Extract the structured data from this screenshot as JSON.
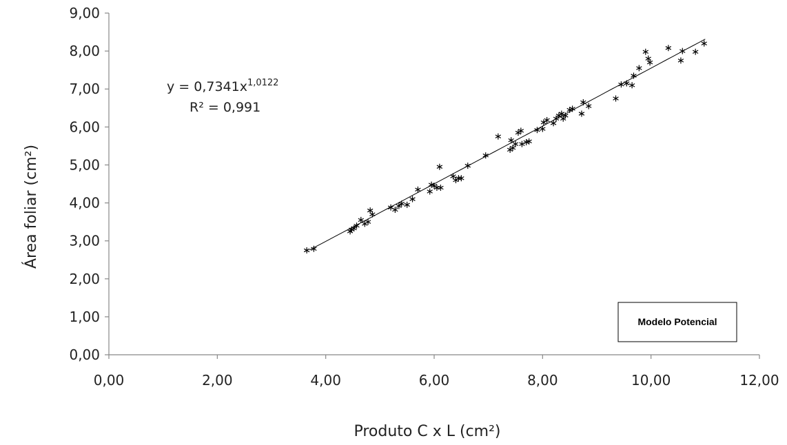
{
  "chart_data": {
    "type": "scatter",
    "xlabel": "Produto C x L  (cm²)",
    "ylabel": "Área foliar  (cm²)",
    "xlim": [
      0,
      12
    ],
    "ylim": [
      0,
      9
    ],
    "x_ticks": [
      "0,00",
      "2,00",
      "4,00",
      "6,00",
      "8,00",
      "10,00",
      "12,00"
    ],
    "y_ticks": [
      "0,00",
      "1,00",
      "2,00",
      "3,00",
      "4,00",
      "5,00",
      "6,00",
      "7,00",
      "8,00",
      "9,00"
    ],
    "equation": "y = 0,7341x",
    "equation_exponent": "1,0122",
    "r_squared_label": "R² = 0,991",
    "legend_box": "Modelo Potencial",
    "trendline": {
      "coefficient": 0.7341,
      "exponent": 1.0122,
      "x_range": [
        3.7,
        11.0
      ]
    },
    "points": [
      [
        3.65,
        2.75
      ],
      [
        3.78,
        2.79
      ],
      [
        4.45,
        3.25
      ],
      [
        4.48,
        3.3
      ],
      [
        4.52,
        3.33
      ],
      [
        4.57,
        3.4
      ],
      [
        4.65,
        3.55
      ],
      [
        4.72,
        3.45
      ],
      [
        4.78,
        3.5
      ],
      [
        4.82,
        3.8
      ],
      [
        4.86,
        3.7
      ],
      [
        5.2,
        3.88
      ],
      [
        5.28,
        3.82
      ],
      [
        5.35,
        3.92
      ],
      [
        5.4,
        3.98
      ],
      [
        5.5,
        3.95
      ],
      [
        5.6,
        4.1
      ],
      [
        5.7,
        4.35
      ],
      [
        5.92,
        4.3
      ],
      [
        5.95,
        4.48
      ],
      [
        6.0,
        4.45
      ],
      [
        6.05,
        4.4
      ],
      [
        6.1,
        4.95
      ],
      [
        6.12,
        4.4
      ],
      [
        6.35,
        4.7
      ],
      [
        6.4,
        4.6
      ],
      [
        6.45,
        4.65
      ],
      [
        6.5,
        4.65
      ],
      [
        6.62,
        4.98
      ],
      [
        6.95,
        5.25
      ],
      [
        7.18,
        5.75
      ],
      [
        7.4,
        5.4
      ],
      [
        7.42,
        5.65
      ],
      [
        7.45,
        5.45
      ],
      [
        7.5,
        5.55
      ],
      [
        7.55,
        5.85
      ],
      [
        7.6,
        5.9
      ],
      [
        7.62,
        5.55
      ],
      [
        7.7,
        5.6
      ],
      [
        7.75,
        5.62
      ],
      [
        7.9,
        5.92
      ],
      [
        8.0,
        5.95
      ],
      [
        8.02,
        6.12
      ],
      [
        8.08,
        6.18
      ],
      [
        8.2,
        6.1
      ],
      [
        8.25,
        6.22
      ],
      [
        8.3,
        6.3
      ],
      [
        8.35,
        6.35
      ],
      [
        8.38,
        6.22
      ],
      [
        8.42,
        6.3
      ],
      [
        8.5,
        6.45
      ],
      [
        8.55,
        6.48
      ],
      [
        8.72,
        6.35
      ],
      [
        8.75,
        6.65
      ],
      [
        8.85,
        6.55
      ],
      [
        9.35,
        6.75
      ],
      [
        9.45,
        7.12
      ],
      [
        9.55,
        7.15
      ],
      [
        9.65,
        7.1
      ],
      [
        9.68,
        7.35
      ],
      [
        9.78,
        7.55
      ],
      [
        9.9,
        7.98
      ],
      [
        9.95,
        7.8
      ],
      [
        9.98,
        7.7
      ],
      [
        10.32,
        8.08
      ],
      [
        10.55,
        7.75
      ],
      [
        10.58,
        8.0
      ],
      [
        10.82,
        7.98
      ],
      [
        10.98,
        8.2
      ]
    ]
  }
}
